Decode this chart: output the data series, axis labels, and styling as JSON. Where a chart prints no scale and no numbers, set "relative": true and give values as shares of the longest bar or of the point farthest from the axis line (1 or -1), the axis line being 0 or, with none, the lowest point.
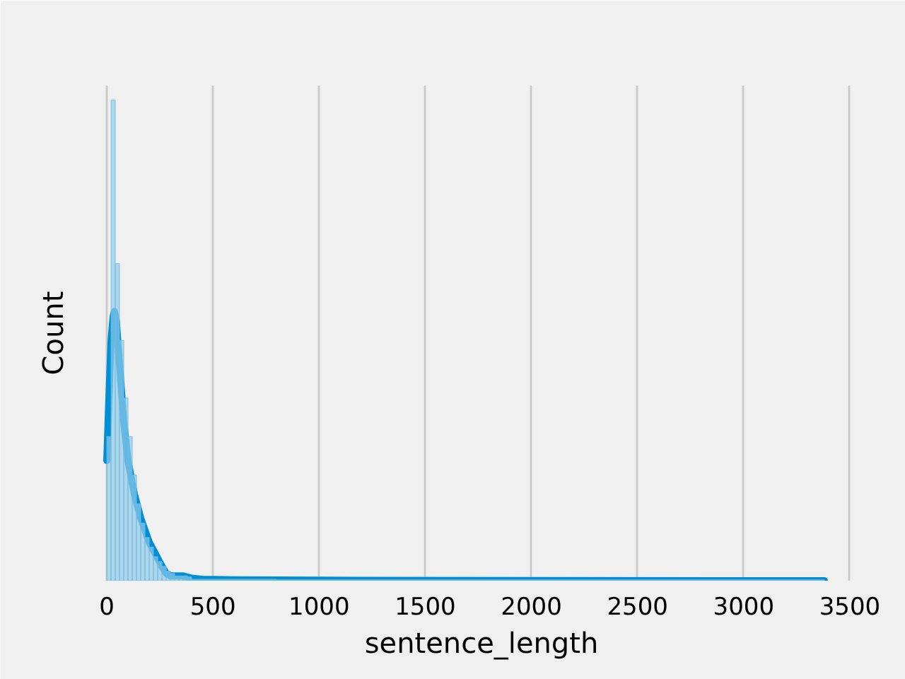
{
  "chart_data": {
    "type": "histogram",
    "xlabel": "sentence_length",
    "ylabel": "Count",
    "relative": true,
    "bins": [
      0,
      20,
      40,
      60,
      80,
      100,
      120,
      140,
      160,
      180,
      200,
      220,
      240,
      260,
      280,
      300,
      320,
      340,
      360,
      380,
      400,
      800,
      1600,
      3380
    ],
    "series": [
      {
        "color": "#8dcae8",
        "values": [
          0.3,
          1.0,
          0.66,
          0.5,
          0.38,
          0.3,
          0.22,
          0.16,
          0.12,
          0.09,
          0.07,
          0.05,
          0.04,
          0.03,
          0.02,
          0.015,
          0.01,
          0.01,
          0.01,
          0.008,
          0.003,
          0.002,
          0.002
        ]
      },
      {
        "type": "line",
        "color": "#008fd5",
        "x": [
          0,
          10,
          20,
          30,
          36,
          45,
          60,
          80,
          100,
          130,
          160,
          200,
          230,
          260,
          280,
          300,
          330,
          360,
          400,
          450,
          600,
          1000,
          2000,
          3380
        ],
        "values": [
          0.25,
          0.38,
          0.5,
          0.55,
          0.56,
          0.54,
          0.45,
          0.33,
          0.25,
          0.18,
          0.13,
          0.08,
          0.055,
          0.03,
          0.015,
          0.01,
          0.01,
          0.01,
          0.005,
          0.003,
          0.002,
          0.001,
          0.0005,
          0.0
        ]
      }
    ],
    "xlim": [
      -100,
      3630
    ],
    "xticks": [
      0,
      500,
      1000,
      1500,
      2000,
      2500,
      3000,
      3500
    ],
    "grid": "x",
    "tick_labels": "x"
  }
}
